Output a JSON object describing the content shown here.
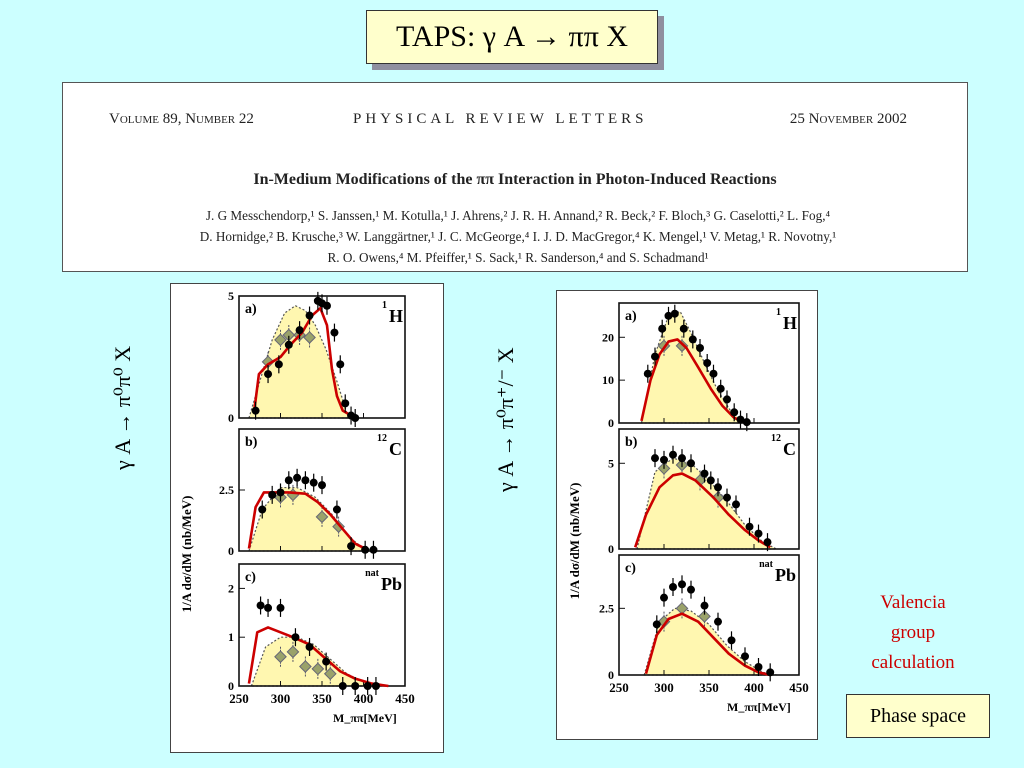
{
  "slide": {
    "title": "TAPS: γ A → ππ X",
    "left_label": "γ A → π⁰π⁰ X",
    "right_label": "γ A → π⁰π⁺/⁻ X",
    "valencia_lines": [
      "Valencia",
      "group",
      "calculation"
    ],
    "phase_space_label": "Phase space"
  },
  "paper": {
    "volume": "Volume 89, Number 22",
    "journal": "PHYSICAL REVIEW LETTERS",
    "date": "25 November 2002",
    "title": "In-Medium Modifications of the ππ Interaction in Photon-Induced Reactions",
    "authors_lines": [
      "J. G Messchendorp,¹ S. Janssen,¹ M. Kotulla,¹ J. Ahrens,² J. R. H. Annand,² R. Beck,² F. Bloch,³ G. Caselotti,² L. Fog,⁴",
      "D. Hornidge,² B. Krusche,³ W. Langgärtner,¹ J. C. McGeorge,⁴ I. J. D. MacGregor,⁴ K. Mengel,¹ V. Metag,¹ R. Novotny,¹",
      "R. O. Owens,⁴ M. Pfeiffer,¹ S. Sack,¹ R. Sanderson,⁴ and S. Schadmand¹"
    ]
  },
  "chart_data": [
    {
      "type": "scatter",
      "figure": "left",
      "xlabel": "M_ππ[MeV]",
      "ylabel": "1/A dσ/dM (nb/MeV)",
      "x_ticks": [
        250,
        300,
        350,
        400,
        450
      ],
      "xlim": [
        250,
        450
      ],
      "panels": [
        {
          "letter": "a)",
          "nucleus": "H",
          "nucleus_sup": "1",
          "ylim": [
            0,
            5
          ],
          "yticks": [
            0,
            5
          ],
          "data": [
            [
              270,
              0.3
            ],
            [
              285,
              1.8
            ],
            [
              298,
              2.2
            ],
            [
              310,
              3.0
            ],
            [
              323,
              3.6
            ],
            [
              335,
              4.2
            ],
            [
              345,
              4.8
            ],
            [
              350,
              4.7
            ],
            [
              356,
              4.6
            ],
            [
              365,
              3.5
            ],
            [
              372,
              2.2
            ],
            [
              378,
              0.6
            ],
            [
              385,
              0.1
            ],
            [
              390,
              0.0
            ]
          ],
          "open_data": [
            [
              285,
              2.3
            ],
            [
              300,
              3.2
            ],
            [
              310,
              3.4
            ],
            [
              323,
              3.4
            ],
            [
              335,
              3.3
            ]
          ],
          "curve": [
            [
              268,
              0.2
            ],
            [
              274,
              1.8
            ],
            [
              285,
              2.2
            ],
            [
              300,
              2.5
            ],
            [
              312,
              3.0
            ],
            [
              326,
              3.5
            ],
            [
              338,
              4.2
            ],
            [
              348,
              4.5
            ],
            [
              356,
              3.8
            ],
            [
              362,
              2.0
            ],
            [
              368,
              0.9
            ],
            [
              375,
              0.3
            ],
            [
              385,
              0.1
            ]
          ],
          "phase_space": [
            [
              262,
              0
            ],
            [
              275,
              1.5
            ],
            [
              290,
              3.2
            ],
            [
              305,
              4.3
            ],
            [
              318,
              4.6
            ],
            [
              330,
              4.4
            ],
            [
              342,
              3.8
            ],
            [
              355,
              2.8
            ],
            [
              368,
              1.5
            ],
            [
              380,
              0.2
            ],
            [
              385,
              0
            ]
          ]
        },
        {
          "letter": "b)",
          "nucleus": "C",
          "nucleus_sup": "12",
          "ylim": [
            0,
            5
          ],
          "yticks": [
            0,
            2.5
          ],
          "data": [
            [
              278,
              1.7
            ],
            [
              290,
              2.3
            ],
            [
              300,
              2.4
            ],
            [
              310,
              2.9
            ],
            [
              320,
              3.0
            ],
            [
              330,
              2.9
            ],
            [
              340,
              2.8
            ],
            [
              350,
              2.7
            ],
            [
              368,
              1.7
            ],
            [
              385,
              0.2
            ],
            [
              402,
              0.05
            ],
            [
              412,
              0.05
            ]
          ],
          "open_data": [
            [
              300,
              2.2
            ],
            [
              315,
              2.3
            ],
            [
              350,
              1.4
            ],
            [
              370,
              1.0
            ]
          ],
          "curve": [
            [
              262,
              0.1
            ],
            [
              270,
              1.8
            ],
            [
              280,
              2.4
            ],
            [
              310,
              2.4
            ],
            [
              330,
              2.35
            ],
            [
              345,
              2.0
            ],
            [
              360,
              1.5
            ],
            [
              375,
              0.9
            ],
            [
              390,
              0.3
            ],
            [
              405,
              0.05
            ]
          ],
          "phase_space": [
            [
              262,
              0
            ],
            [
              278,
              1.7
            ],
            [
              300,
              2.6
            ],
            [
              320,
              2.6
            ],
            [
              342,
              2.2
            ],
            [
              362,
              1.5
            ],
            [
              382,
              0.6
            ],
            [
              400,
              0.1
            ],
            [
              415,
              0
            ]
          ]
        },
        {
          "letter": "c)",
          "nucleus": "Pb",
          "nucleus_sup": "nat",
          "ylim": [
            0,
            2.5
          ],
          "yticks": [
            0,
            1,
            2
          ],
          "data": [
            [
              276,
              1.65
            ],
            [
              285,
              1.6
            ],
            [
              300,
              1.6
            ],
            [
              318,
              1.0
            ],
            [
              335,
              0.8
            ],
            [
              355,
              0.5
            ],
            [
              375,
              0.0
            ],
            [
              390,
              0.0
            ],
            [
              405,
              0.0
            ],
            [
              415,
              0.0
            ]
          ],
          "open_data": [
            [
              300,
              0.6
            ],
            [
              315,
              0.7
            ],
            [
              330,
              0.4
            ],
            [
              345,
              0.35
            ],
            [
              360,
              0.25
            ]
          ],
          "curve": [
            [
              262,
              0.05
            ],
            [
              272,
              1.1
            ],
            [
              285,
              1.2
            ],
            [
              300,
              1.1
            ],
            [
              315,
              1.0
            ],
            [
              335,
              0.85
            ],
            [
              355,
              0.55
            ],
            [
              372,
              0.3
            ],
            [
              390,
              0.15
            ],
            [
              410,
              0.05
            ],
            [
              430,
              0
            ]
          ],
          "phase_space": [
            [
              265,
              0
            ],
            [
              282,
              0.8
            ],
            [
              300,
              1.0
            ],
            [
              320,
              1.0
            ],
            [
              340,
              0.85
            ],
            [
              360,
              0.55
            ],
            [
              380,
              0.25
            ],
            [
              400,
              0.08
            ],
            [
              420,
              0
            ]
          ]
        }
      ]
    },
    {
      "type": "scatter",
      "figure": "right",
      "xlabel": "M_ππ[MeV]",
      "ylabel": "1/A dσ/dM (nb/MeV)",
      "x_ticks": [
        250,
        300,
        350,
        400,
        450
      ],
      "xlim": [
        250,
        450
      ],
      "panels": [
        {
          "letter": "a)",
          "nucleus": "H",
          "nucleus_sup": "1",
          "ylim": [
            0,
            28
          ],
          "yticks": [
            0,
            10,
            20
          ],
          "data": [
            [
              282,
              11.5
            ],
            [
              290,
              15.5
            ],
            [
              298,
              22.0
            ],
            [
              305,
              25.0
            ],
            [
              312,
              25.5
            ],
            [
              322,
              22.0
            ],
            [
              332,
              19.5
            ],
            [
              340,
              17.5
            ],
            [
              348,
              14.0
            ],
            [
              355,
              11.5
            ],
            [
              363,
              8.0
            ],
            [
              370,
              5.5
            ],
            [
              378,
              2.5
            ],
            [
              385,
              0.8
            ],
            [
              392,
              0.2
            ]
          ],
          "open_data": [
            [
              300,
              18
            ],
            [
              320,
              18
            ]
          ],
          "curve": [
            [
              275,
              0.5
            ],
            [
              285,
              10.0
            ],
            [
              295,
              16.0
            ],
            [
              305,
              19.0
            ],
            [
              315,
              19.5
            ],
            [
              325,
              17.5
            ],
            [
              338,
              13.0
            ],
            [
              352,
              8.0
            ],
            [
              365,
              4.0
            ],
            [
              378,
              1.2
            ],
            [
              390,
              0.2
            ]
          ],
          "phase_space": [
            [
              275,
              0
            ],
            [
              290,
              16.0
            ],
            [
              305,
              25.0
            ],
            [
              318,
              26.0
            ],
            [
              330,
              21.0
            ],
            [
              345,
              14.0
            ],
            [
              360,
              7.5
            ],
            [
              375,
              2.5
            ],
            [
              390,
              0
            ]
          ]
        },
        {
          "letter": "b)",
          "nucleus": "C",
          "nucleus_sup": "12",
          "ylim": [
            0,
            7
          ],
          "yticks": [
            0,
            5
          ],
          "data": [
            [
              290,
              5.3
            ],
            [
              300,
              5.2
            ],
            [
              310,
              5.5
            ],
            [
              320,
              5.3
            ],
            [
              330,
              5.0
            ],
            [
              345,
              4.4
            ],
            [
              352,
              4.0
            ],
            [
              360,
              3.6
            ],
            [
              370,
              3.0
            ],
            [
              380,
              2.6
            ],
            [
              395,
              1.3
            ],
            [
              405,
              0.9
            ],
            [
              415,
              0.4
            ]
          ],
          "open_data": [
            [
              300,
              4.7
            ],
            [
              320,
              4.9
            ],
            [
              340,
              4.0
            ],
            [
              360,
              3.0
            ]
          ],
          "curve": [
            [
              268,
              0.1
            ],
            [
              280,
              2.0
            ],
            [
              295,
              3.6
            ],
            [
              310,
              4.3
            ],
            [
              320,
              4.4
            ],
            [
              335,
              4.0
            ],
            [
              355,
              3.0
            ],
            [
              372,
              2.0
            ],
            [
              390,
              1.1
            ],
            [
              405,
              0.5
            ],
            [
              418,
              0.1
            ]
          ],
          "phase_space": [
            [
              270,
              0
            ],
            [
              290,
              4.5
            ],
            [
              310,
              5.3
            ],
            [
              330,
              5.0
            ],
            [
              350,
              4.0
            ],
            [
              370,
              2.8
            ],
            [
              390,
              1.4
            ],
            [
              410,
              0.4
            ],
            [
              425,
              0
            ]
          ]
        },
        {
          "letter": "c)",
          "nucleus": "Pb",
          "nucleus_sup": "nat",
          "ylim": [
            0,
            4.5
          ],
          "yticks": [
            0,
            2.5
          ],
          "data": [
            [
              292,
              1.9
            ],
            [
              300,
              2.9
            ],
            [
              310,
              3.3
            ],
            [
              320,
              3.4
            ],
            [
              330,
              3.2
            ],
            [
              345,
              2.6
            ],
            [
              360,
              2.0
            ],
            [
              375,
              1.3
            ],
            [
              390,
              0.7
            ],
            [
              405,
              0.3
            ],
            [
              418,
              0.1
            ]
          ],
          "open_data": [
            [
              300,
              2.0
            ],
            [
              320,
              2.5
            ],
            [
              345,
              2.2
            ]
          ],
          "curve": [
            [
              280,
              0.05
            ],
            [
              292,
              1.5
            ],
            [
              305,
              2.1
            ],
            [
              320,
              2.3
            ],
            [
              338,
              2.0
            ],
            [
              355,
              1.4
            ],
            [
              372,
              0.8
            ],
            [
              390,
              0.35
            ],
            [
              405,
              0.1
            ],
            [
              418,
              0
            ]
          ],
          "phase_space": [
            [
              278,
              0
            ],
            [
              295,
              2.0
            ],
            [
              312,
              2.5
            ],
            [
              330,
              2.4
            ],
            [
              350,
              1.9
            ],
            [
              370,
              1.1
            ],
            [
              390,
              0.5
            ],
            [
              410,
              0.1
            ],
            [
              425,
              0
            ]
          ]
        }
      ]
    }
  ]
}
